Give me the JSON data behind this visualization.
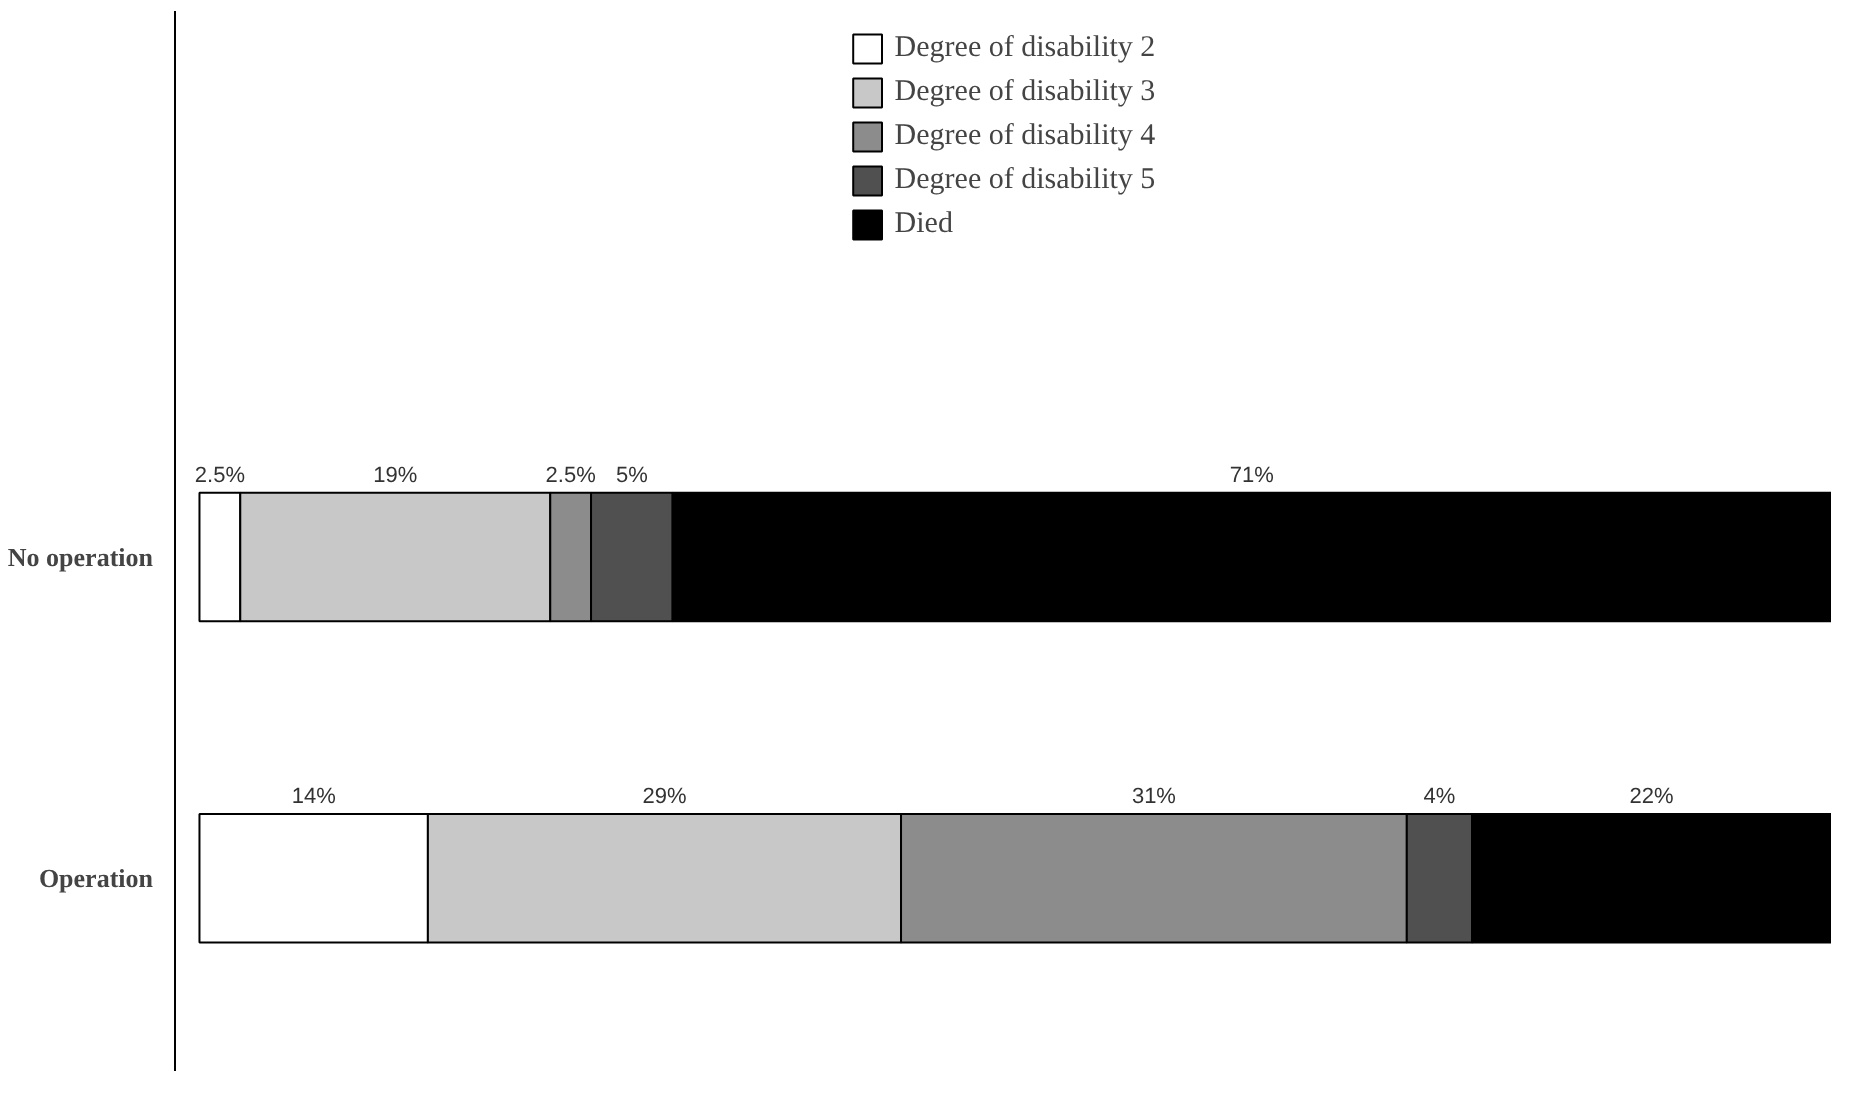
{
  "chart_data": {
    "type": "bar",
    "orientation": "horizontal",
    "stacked": true,
    "categories": [
      "No operation",
      "Operation"
    ],
    "series": [
      {
        "name": "Degree of disability 2",
        "color": "#ffffff",
        "values": [
          2.5,
          14
        ],
        "value_labels": [
          "2.5%",
          "14%"
        ]
      },
      {
        "name": "Degree of disability 3",
        "color": "#c8c8c8",
        "values": [
          19,
          29
        ],
        "value_labels": [
          "19%",
          "29%"
        ]
      },
      {
        "name": "Degree of disability 4",
        "color": "#8c8c8c",
        "values": [
          2.5,
          31
        ],
        "value_labels": [
          "2.5%",
          "31%"
        ]
      },
      {
        "name": "Degree of disability 5",
        "color": "#505050",
        "values": [
          5,
          4
        ],
        "value_labels": [
          "5%",
          "4%"
        ]
      },
      {
        "name": "Died",
        "color": "#000000",
        "values": [
          71,
          22
        ],
        "value_labels": [
          "71%",
          "22%"
        ]
      }
    ],
    "legend": "top",
    "grid": false
  }
}
